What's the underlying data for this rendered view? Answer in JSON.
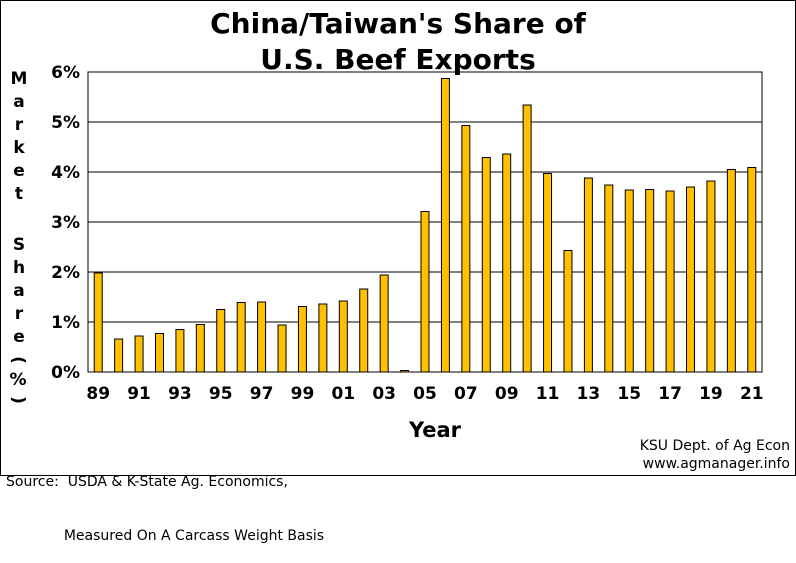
{
  "chart_data": {
    "type": "bar",
    "title_line1": "China/Taiwan's Share of",
    "title_line2": "U.S. Beef Exports",
    "ylabel_top": "Market",
    "ylabel_bottom": "Share",
    "ylabel_unit": "(%)",
    "xlabel": "Year",
    "ylim": [
      0,
      6
    ],
    "yticks": [
      "0%",
      "1%",
      "2%",
      "3%",
      "4%",
      "5%",
      "6%"
    ],
    "grid": true,
    "bar_color": "#FFC000",
    "categories": [
      "89",
      "90",
      "91",
      "92",
      "93",
      "94",
      "95",
      "96",
      "97",
      "98",
      "99",
      "00",
      "01",
      "02",
      "03",
      "04",
      "05",
      "06",
      "07",
      "08",
      "09",
      "10",
      "11",
      "12",
      "13",
      "14",
      "15",
      "16",
      "17",
      "18",
      "19",
      "20",
      "21"
    ],
    "xtick_labels": [
      "89",
      "",
      "91",
      "",
      "93",
      "",
      "95",
      "",
      "97",
      "",
      "99",
      "",
      "01",
      "",
      "03",
      "",
      "05",
      "",
      "07",
      "",
      "09",
      "",
      "11",
      "",
      "13",
      "",
      "15",
      "",
      "17",
      "",
      "19",
      "",
      "21"
    ],
    "values": [
      1.98,
      0.66,
      0.72,
      0.77,
      0.85,
      0.95,
      1.25,
      1.39,
      1.4,
      0.94,
      1.31,
      1.36,
      1.42,
      1.66,
      1.94,
      0.03,
      3.21,
      5.87,
      4.93,
      4.29,
      4.36,
      5.34,
      3.97,
      2.43,
      3.88,
      3.74,
      3.64,
      3.65,
      3.62,
      3.7,
      3.82,
      4.05,
      4.09
    ]
  },
  "footer": {
    "source_line1": "Source:  USDA & K-State Ag. Economics,",
    "source_line2": "             Measured On A Carcass Weight Basis",
    "credit_line1": "KSU Dept. of Ag Econ",
    "credit_line2": "www.agmanager.info"
  }
}
